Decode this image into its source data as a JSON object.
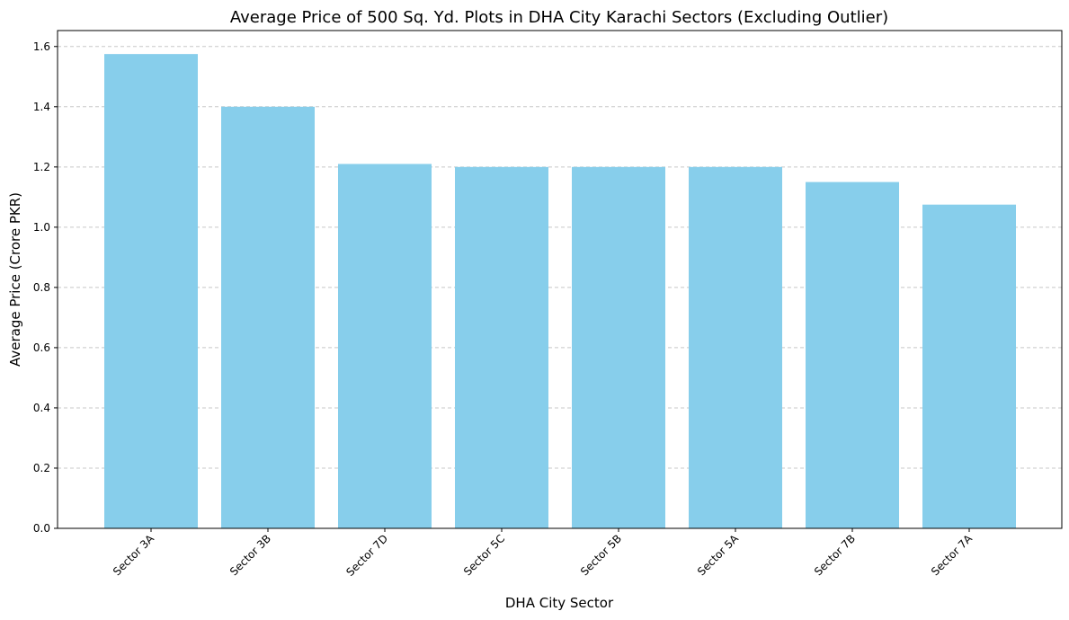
{
  "chart_data": {
    "type": "bar",
    "title": "Average Price of 500 Sq. Yd. Plots in DHA City Karachi Sectors (Excluding Outlier)",
    "xlabel": "DHA City Sector",
    "ylabel": "Average Price (Crore PKR)",
    "categories": [
      "Sector 3A",
      "Sector 3B",
      "Sector 7D",
      "Sector 5C",
      "Sector 5B",
      "Sector 5A",
      "Sector 7B",
      "Sector 7A"
    ],
    "values": [
      1.575,
      1.4,
      1.21,
      1.2,
      1.2,
      1.2,
      1.15,
      1.075
    ],
    "ylim": [
      0,
      1.653
    ],
    "yticks": [
      "0.0",
      "0.2",
      "0.4",
      "0.6",
      "0.8",
      "1.0",
      "1.2",
      "1.4",
      "1.6"
    ],
    "grid": "y-dashed",
    "bar_color": "#87CEEB"
  }
}
